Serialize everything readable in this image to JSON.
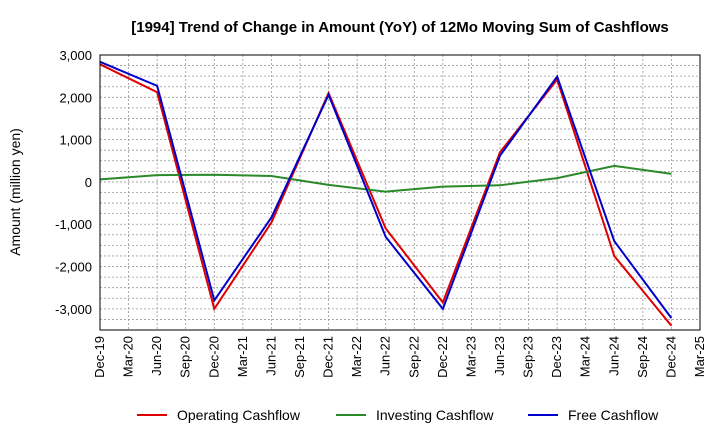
{
  "chart_data": {
    "type": "line",
    "title": "[1994]  Trend of Change in Amount (YoY) of 12Mo Moving Sum of Cashflows",
    "xlabel": "",
    "ylabel": "Amount (million yen)",
    "ylim": [
      -3500,
      3000
    ],
    "yticks": [
      3000,
      2000,
      1000,
      0,
      -1000,
      -2000,
      -3000
    ],
    "ytick_labels": [
      "3,000",
      "2,000",
      "1,000",
      "0",
      "-1,000",
      "-2,000",
      "-3,000"
    ],
    "xticks": [
      "Dec-19",
      "Mar-20",
      "Jun-20",
      "Sep-20",
      "Dec-20",
      "Mar-21",
      "Jun-21",
      "Sep-21",
      "Dec-21",
      "Mar-22",
      "Jun-22",
      "Sep-22",
      "Dec-22",
      "Mar-23",
      "Jun-23",
      "Sep-23",
      "Dec-23",
      "Mar-24",
      "Jun-24",
      "Sep-24",
      "Dec-24",
      "Mar-25"
    ],
    "grid": true,
    "legend_position": "bottom",
    "series": [
      {
        "name": "Operating Cashflow",
        "color": "#e00000",
        "x": [
          0,
          2,
          4,
          6,
          8,
          10,
          12,
          14,
          16,
          18,
          20
        ],
        "values": [
          2780,
          2120,
          -3000,
          -960,
          2100,
          -1100,
          -2850,
          700,
          2420,
          -1750,
          -3400
        ]
      },
      {
        "name": "Investing Cashflow",
        "color": "#2a8a2a",
        "x": [
          0,
          2,
          4,
          6,
          8,
          10,
          12,
          14,
          16,
          18,
          20
        ],
        "values": [
          60,
          160,
          170,
          140,
          -70,
          -230,
          -110,
          -80,
          90,
          380,
          190
        ]
      },
      {
        "name": "Free Cashflow",
        "color": "#0000cc",
        "x": [
          0,
          2,
          4,
          6,
          8,
          10,
          12,
          14,
          16,
          18,
          20
        ],
        "values": [
          2840,
          2270,
          -2800,
          -840,
          2060,
          -1300,
          -3000,
          620,
          2490,
          -1400,
          -3220
        ]
      }
    ]
  }
}
